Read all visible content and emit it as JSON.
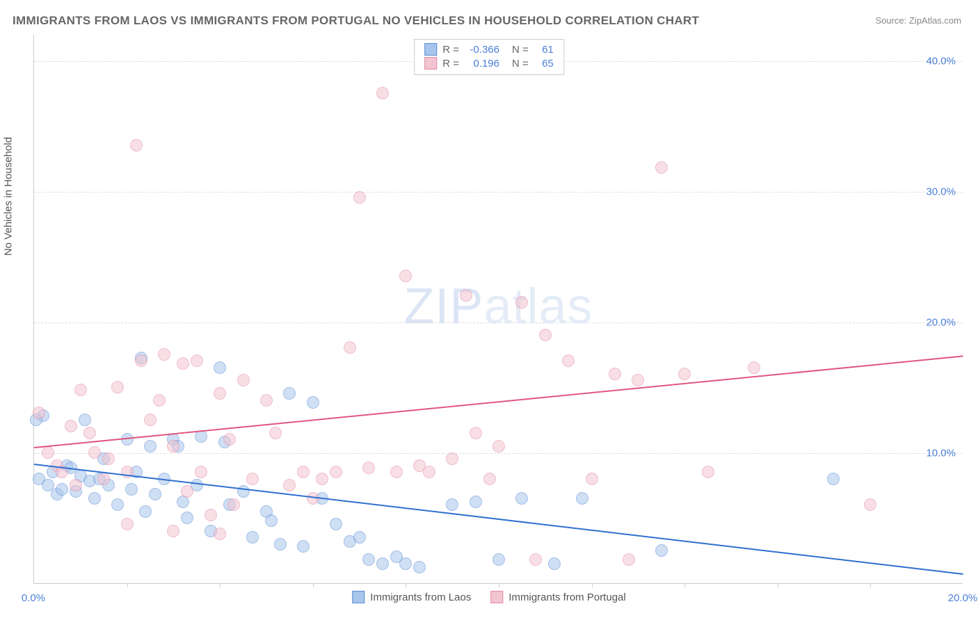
{
  "title": "IMMIGRANTS FROM LAOS VS IMMIGRANTS FROM PORTUGAL NO VEHICLES IN HOUSEHOLD CORRELATION CHART",
  "source_label": "Source: ",
  "source_name": "ZipAtlas.com",
  "y_axis_label": "No Vehicles in Household",
  "watermark_prefix": "ZIP",
  "watermark_suffix": "atlas",
  "chart": {
    "type": "scatter",
    "xlim": [
      0,
      20
    ],
    "ylim": [
      0,
      42
    ],
    "x_ticks": [
      0,
      20
    ],
    "x_tick_labels": [
      "0.0%",
      "20.0%"
    ],
    "x_minor_ticks": [
      2,
      4,
      6,
      8,
      10,
      12,
      14,
      16,
      18
    ],
    "y_ticks": [
      10,
      20,
      30,
      40
    ],
    "y_tick_labels": [
      "10.0%",
      "20.0%",
      "30.0%",
      "40.0%"
    ],
    "background_color": "#ffffff",
    "grid_color": "#dddddd",
    "axis_color": "#cccccc",
    "tick_label_color": "#4a7fd8",
    "axis_label_color": "#555555",
    "title_color": "#666666",
    "title_fontsize": 17,
    "label_fontsize": 15,
    "tick_fontsize": 15,
    "point_radius": 9,
    "point_opacity": 0.55,
    "series": [
      {
        "name": "Immigrants from Laos",
        "color_fill": "#a8c6ec",
        "color_stroke": "#5b8bd4",
        "R": "-0.366",
        "N": "61",
        "trend": {
          "x1": 0,
          "y1": 9.2,
          "x2": 20,
          "y2": 0.8,
          "color": "#2f6fd0",
          "width": 2
        },
        "points": [
          [
            0.1,
            8.0
          ],
          [
            0.2,
            12.8
          ],
          [
            0.3,
            7.5
          ],
          [
            0.4,
            8.5
          ],
          [
            0.5,
            6.8
          ],
          [
            0.6,
            7.2
          ],
          [
            0.7,
            9.0
          ],
          [
            0.8,
            8.8
          ],
          [
            0.9,
            7.0
          ],
          [
            1.0,
            8.2
          ],
          [
            1.1,
            12.5
          ],
          [
            1.2,
            7.8
          ],
          [
            1.3,
            6.5
          ],
          [
            1.4,
            8.0
          ],
          [
            1.5,
            9.5
          ],
          [
            1.6,
            7.5
          ],
          [
            1.8,
            6.0
          ],
          [
            2.0,
            11.0
          ],
          [
            2.1,
            7.2
          ],
          [
            2.2,
            8.5
          ],
          [
            2.3,
            17.2
          ],
          [
            2.4,
            5.5
          ],
          [
            2.5,
            10.5
          ],
          [
            2.6,
            6.8
          ],
          [
            2.8,
            8.0
          ],
          [
            3.0,
            11.0
          ],
          [
            3.1,
            10.5
          ],
          [
            3.2,
            6.2
          ],
          [
            3.3,
            5.0
          ],
          [
            3.5,
            7.5
          ],
          [
            3.6,
            11.2
          ],
          [
            3.8,
            4.0
          ],
          [
            4.0,
            16.5
          ],
          [
            4.1,
            10.8
          ],
          [
            4.2,
            6.0
          ],
          [
            4.5,
            7.0
          ],
          [
            4.7,
            3.5
          ],
          [
            5.0,
            5.5
          ],
          [
            5.1,
            4.8
          ],
          [
            5.3,
            3.0
          ],
          [
            5.5,
            14.5
          ],
          [
            5.8,
            2.8
          ],
          [
            6.0,
            13.8
          ],
          [
            6.2,
            6.5
          ],
          [
            6.5,
            4.5
          ],
          [
            6.8,
            3.2
          ],
          [
            7.0,
            3.5
          ],
          [
            7.2,
            1.8
          ],
          [
            7.5,
            1.5
          ],
          [
            7.8,
            2.0
          ],
          [
            8.0,
            1.5
          ],
          [
            8.3,
            1.2
          ],
          [
            9.0,
            6.0
          ],
          [
            9.5,
            6.2
          ],
          [
            10.0,
            1.8
          ],
          [
            10.5,
            6.5
          ],
          [
            11.2,
            1.5
          ],
          [
            11.8,
            6.5
          ],
          [
            13.5,
            2.5
          ],
          [
            17.2,
            8.0
          ],
          [
            0.05,
            12.5
          ]
        ]
      },
      {
        "name": "Immigrants from Portugal",
        "color_fill": "#f3c4d1",
        "color_stroke": "#e389a4",
        "R": "0.196",
        "N": "65",
        "trend": {
          "x1": 0,
          "y1": 10.5,
          "x2": 20,
          "y2": 17.5,
          "color": "#e0567e",
          "width": 2
        },
        "points": [
          [
            0.1,
            13.0
          ],
          [
            0.3,
            10.0
          ],
          [
            0.5,
            9.0
          ],
          [
            0.6,
            8.5
          ],
          [
            0.8,
            12.0
          ],
          [
            0.9,
            7.5
          ],
          [
            1.0,
            14.8
          ],
          [
            1.2,
            11.5
          ],
          [
            1.3,
            10.0
          ],
          [
            1.5,
            8.0
          ],
          [
            1.6,
            9.5
          ],
          [
            1.8,
            15.0
          ],
          [
            2.0,
            8.5
          ],
          [
            2.2,
            33.5
          ],
          [
            2.3,
            17.0
          ],
          [
            2.5,
            12.5
          ],
          [
            2.7,
            14.0
          ],
          [
            2.8,
            17.5
          ],
          [
            3.0,
            10.5
          ],
          [
            3.2,
            16.8
          ],
          [
            3.3,
            7.0
          ],
          [
            3.5,
            17.0
          ],
          [
            3.6,
            8.5
          ],
          [
            3.8,
            5.2
          ],
          [
            4.0,
            14.5
          ],
          [
            4.2,
            11.0
          ],
          [
            4.3,
            6.0
          ],
          [
            4.5,
            15.5
          ],
          [
            4.7,
            8.0
          ],
          [
            5.0,
            14.0
          ],
          [
            5.2,
            11.5
          ],
          [
            5.5,
            7.5
          ],
          [
            5.8,
            8.5
          ],
          [
            6.0,
            6.5
          ],
          [
            6.2,
            8.0
          ],
          [
            6.5,
            8.5
          ],
          [
            6.8,
            18.0
          ],
          [
            7.0,
            29.5
          ],
          [
            7.2,
            8.8
          ],
          [
            7.5,
            37.5
          ],
          [
            7.8,
            8.5
          ],
          [
            8.0,
            23.5
          ],
          [
            8.3,
            9.0
          ],
          [
            8.5,
            8.5
          ],
          [
            9.0,
            9.5
          ],
          [
            9.3,
            22.0
          ],
          [
            9.5,
            11.5
          ],
          [
            9.8,
            8.0
          ],
          [
            10.0,
            10.5
          ],
          [
            10.5,
            21.5
          ],
          [
            10.8,
            1.8
          ],
          [
            11.0,
            19.0
          ],
          [
            11.5,
            17.0
          ],
          [
            12.0,
            8.0
          ],
          [
            12.5,
            16.0
          ],
          [
            12.8,
            1.8
          ],
          [
            13.0,
            15.5
          ],
          [
            13.5,
            31.8
          ],
          [
            14.0,
            16.0
          ],
          [
            14.5,
            8.5
          ],
          [
            15.5,
            16.5
          ],
          [
            2.0,
            4.5
          ],
          [
            3.0,
            4.0
          ],
          [
            4.0,
            3.8
          ],
          [
            18.0,
            6.0
          ]
        ]
      }
    ],
    "legend_top": {
      "R_label": "R =",
      "N_label": "N ="
    },
    "legend_bottom_labels": [
      "Immigrants from Laos",
      "Immigrants from Portugal"
    ]
  }
}
